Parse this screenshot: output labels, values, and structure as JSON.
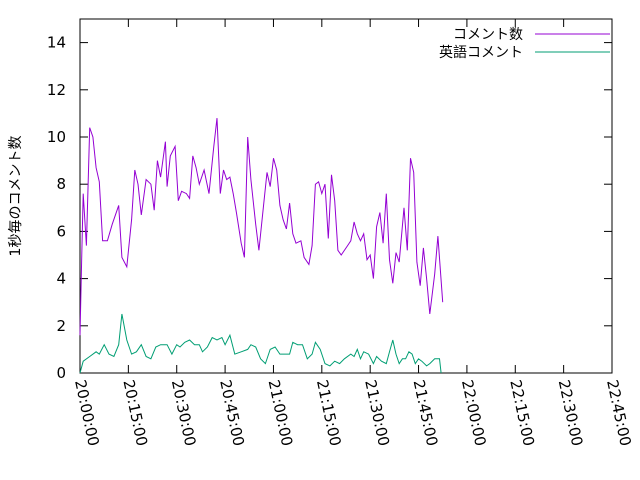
{
  "chart_data": {
    "type": "line",
    "title": "",
    "xlabel": "",
    "ylabel": "1秒毎のコメント数",
    "xlim": [
      "20:00:00",
      "22:45:00"
    ],
    "ylim": [
      0,
      15
    ],
    "x_ticks": [
      "20:00:00",
      "20:15:00",
      "20:30:00",
      "20:45:00",
      "21:00:00",
      "21:15:00",
      "21:30:00",
      "21:45:00",
      "22:00:00",
      "22:15:00",
      "22:30:00",
      "22:45:00"
    ],
    "y_ticks": [
      "0",
      "2",
      "4",
      "6",
      "8",
      "10",
      "12",
      "14"
    ],
    "grid": false,
    "legend_position": "top-right",
    "series": [
      {
        "name": "コメント数",
        "color": "#9400d3",
        "points": [
          [
            "20:00:00",
            1.6
          ],
          [
            "20:00:30",
            4.7
          ],
          [
            "20:01:00",
            7.6
          ],
          [
            "20:02:00",
            5.4
          ],
          [
            "20:03:00",
            10.4
          ],
          [
            "20:04:00",
            10.0
          ],
          [
            "20:05:00",
            8.7
          ],
          [
            "20:06:00",
            8.1
          ],
          [
            "20:07:00",
            5.6
          ],
          [
            "20:08:30",
            5.6
          ],
          [
            "20:10:00",
            6.3
          ],
          [
            "20:12:00",
            7.1
          ],
          [
            "20:13:00",
            4.9
          ],
          [
            "20:14:30",
            4.5
          ],
          [
            "20:16:00",
            6.5
          ],
          [
            "20:17:00",
            8.6
          ],
          [
            "20:18:00",
            8.0
          ],
          [
            "20:19:00",
            6.7
          ],
          [
            "20:20:30",
            8.2
          ],
          [
            "20:22:00",
            8.0
          ],
          [
            "20:23:00",
            6.9
          ],
          [
            "20:24:00",
            9.0
          ],
          [
            "20:25:00",
            8.3
          ],
          [
            "20:26:30",
            9.8
          ],
          [
            "20:27:00",
            7.9
          ],
          [
            "20:28:00",
            9.2
          ],
          [
            "20:29:30",
            9.6
          ],
          [
            "20:30:30",
            7.3
          ],
          [
            "20:31:30",
            7.7
          ],
          [
            "20:33:00",
            7.6
          ],
          [
            "20:34:00",
            7.4
          ],
          [
            "20:35:00",
            9.2
          ],
          [
            "20:36:00",
            8.7
          ],
          [
            "20:37:00",
            8.0
          ],
          [
            "20:38:30",
            8.6
          ],
          [
            "20:40:00",
            7.6
          ],
          [
            "20:41:30",
            9.6
          ],
          [
            "20:42:30",
            10.8
          ],
          [
            "20:43:30",
            7.6
          ],
          [
            "20:44:30",
            8.6
          ],
          [
            "20:45:30",
            8.2
          ],
          [
            "20:46:30",
            8.3
          ],
          [
            "20:47:30",
            7.6
          ],
          [
            "20:48:30",
            6.8
          ],
          [
            "20:50:00",
            5.5
          ],
          [
            "20:51:00",
            4.9
          ],
          [
            "20:52:00",
            10.0
          ],
          [
            "20:53:00",
            8.2
          ],
          [
            "20:54:30",
            6.3
          ],
          [
            "20:55:30",
            5.2
          ],
          [
            "20:57:00",
            7.2
          ],
          [
            "20:58:00",
            8.5
          ],
          [
            "20:59:00",
            7.9
          ],
          [
            "21:00:00",
            9.1
          ],
          [
            "21:01:00",
            8.6
          ],
          [
            "21:02:00",
            7.1
          ],
          [
            "21:03:00",
            6.5
          ],
          [
            "21:04:00",
            6.1
          ],
          [
            "21:05:00",
            7.2
          ],
          [
            "21:06:00",
            5.9
          ],
          [
            "21:07:00",
            5.5
          ],
          [
            "21:08:30",
            5.6
          ],
          [
            "21:09:30",
            4.9
          ],
          [
            "21:11:00",
            4.6
          ],
          [
            "21:12:00",
            5.4
          ],
          [
            "21:13:00",
            8.0
          ],
          [
            "21:14:00",
            8.1
          ],
          [
            "21:15:00",
            7.6
          ],
          [
            "21:16:00",
            8.0
          ],
          [
            "21:17:00",
            5.7
          ],
          [
            "21:18:00",
            8.4
          ],
          [
            "21:19:00",
            7.3
          ],
          [
            "21:20:00",
            5.2
          ],
          [
            "21:21:00",
            5.0
          ],
          [
            "21:23:00",
            5.4
          ],
          [
            "21:24:00",
            5.6
          ],
          [
            "21:25:00",
            6.4
          ],
          [
            "21:26:00",
            5.9
          ],
          [
            "21:27:00",
            5.6
          ],
          [
            "21:28:00",
            5.9
          ],
          [
            "21:29:00",
            4.8
          ],
          [
            "21:30:00",
            5.0
          ],
          [
            "21:31:00",
            4.0
          ],
          [
            "21:32:00",
            6.2
          ],
          [
            "21:33:00",
            6.8
          ],
          [
            "21:34:00",
            5.5
          ],
          [
            "21:35:00",
            7.6
          ],
          [
            "21:36:00",
            4.8
          ],
          [
            "21:37:00",
            3.8
          ],
          [
            "21:38:00",
            5.1
          ],
          [
            "21:39:00",
            4.7
          ],
          [
            "21:40:30",
            7.0
          ],
          [
            "21:41:30",
            5.2
          ],
          [
            "21:42:30",
            9.1
          ],
          [
            "21:43:30",
            8.5
          ],
          [
            "21:44:30",
            4.7
          ],
          [
            "21:45:30",
            3.7
          ],
          [
            "21:46:30",
            5.3
          ],
          [
            "21:47:30",
            4.0
          ],
          [
            "21:48:30",
            2.5
          ],
          [
            "21:50:00",
            4.2
          ],
          [
            "21:51:00",
            5.8
          ],
          [
            "21:52:30",
            3.0
          ]
        ]
      },
      {
        "name": "英語コメント",
        "color": "#009e73",
        "points": [
          [
            "20:00:00",
            0.0
          ],
          [
            "20:01:00",
            0.5
          ],
          [
            "20:03:00",
            0.7
          ],
          [
            "20:05:00",
            0.9
          ],
          [
            "20:06:00",
            0.8
          ],
          [
            "20:07:30",
            1.2
          ],
          [
            "20:09:00",
            0.8
          ],
          [
            "20:10:30",
            0.7
          ],
          [
            "20:12:00",
            1.2
          ],
          [
            "20:13:00",
            2.5
          ],
          [
            "20:14:30",
            1.4
          ],
          [
            "20:16:00",
            0.8
          ],
          [
            "20:17:30",
            0.9
          ],
          [
            "20:19:00",
            1.2
          ],
          [
            "20:20:30",
            0.7
          ],
          [
            "20:22:00",
            0.6
          ],
          [
            "20:23:30",
            1.1
          ],
          [
            "20:25:00",
            1.2
          ],
          [
            "20:27:00",
            1.2
          ],
          [
            "20:28:30",
            0.8
          ],
          [
            "20:30:00",
            1.2
          ],
          [
            "20:31:00",
            1.1
          ],
          [
            "20:32:30",
            1.3
          ],
          [
            "20:34:00",
            1.4
          ],
          [
            "20:35:30",
            1.2
          ],
          [
            "20:37:00",
            1.2
          ],
          [
            "20:38:00",
            0.9
          ],
          [
            "20:39:30",
            1.1
          ],
          [
            "20:41:00",
            1.5
          ],
          [
            "20:42:30",
            1.4
          ],
          [
            "20:44:00",
            1.5
          ],
          [
            "20:45:00",
            1.2
          ],
          [
            "20:46:30",
            1.6
          ],
          [
            "20:48:00",
            0.8
          ],
          [
            "20:50:00",
            0.9
          ],
          [
            "20:52:00",
            1.0
          ],
          [
            "20:53:00",
            1.2
          ],
          [
            "20:54:30",
            1.1
          ],
          [
            "20:56:00",
            0.6
          ],
          [
            "20:57:30",
            0.4
          ],
          [
            "20:59:00",
            1.0
          ],
          [
            "21:00:30",
            1.1
          ],
          [
            "21:02:00",
            0.8
          ],
          [
            "21:03:00",
            0.8
          ],
          [
            "21:05:00",
            0.8
          ],
          [
            "21:06:00",
            1.3
          ],
          [
            "21:07:30",
            1.2
          ],
          [
            "21:09:00",
            1.2
          ],
          [
            "21:10:30",
            0.6
          ],
          [
            "21:12:00",
            0.8
          ],
          [
            "21:13:00",
            1.3
          ],
          [
            "21:14:30",
            1.0
          ],
          [
            "21:16:00",
            0.4
          ],
          [
            "21:17:30",
            0.3
          ],
          [
            "21:19:00",
            0.5
          ],
          [
            "21:20:30",
            0.4
          ],
          [
            "21:22:00",
            0.6
          ],
          [
            "21:24:00",
            0.8
          ],
          [
            "21:25:00",
            0.7
          ],
          [
            "21:26:00",
            1.0
          ],
          [
            "21:27:00",
            0.6
          ],
          [
            "21:28:00",
            0.9
          ],
          [
            "21:29:30",
            0.8
          ],
          [
            "21:31:00",
            0.4
          ],
          [
            "21:32:00",
            0.7
          ],
          [
            "21:33:30",
            0.5
          ],
          [
            "21:35:00",
            0.4
          ],
          [
            "21:36:00",
            0.9
          ],
          [
            "21:37:00",
            1.4
          ],
          [
            "21:38:00",
            0.8
          ],
          [
            "21:39:00",
            0.4
          ],
          [
            "21:40:00",
            0.6
          ],
          [
            "21:41:00",
            0.6
          ],
          [
            "21:42:00",
            0.9
          ],
          [
            "21:43:00",
            0.8
          ],
          [
            "21:44:00",
            0.4
          ],
          [
            "21:45:00",
            0.6
          ],
          [
            "21:46:00",
            0.5
          ],
          [
            "21:47:30",
            0.3
          ],
          [
            "21:48:30",
            0.4
          ],
          [
            "21:50:00",
            0.6
          ],
          [
            "21:51:30",
            0.6
          ],
          [
            "21:52:00",
            0.0
          ]
        ]
      }
    ]
  }
}
